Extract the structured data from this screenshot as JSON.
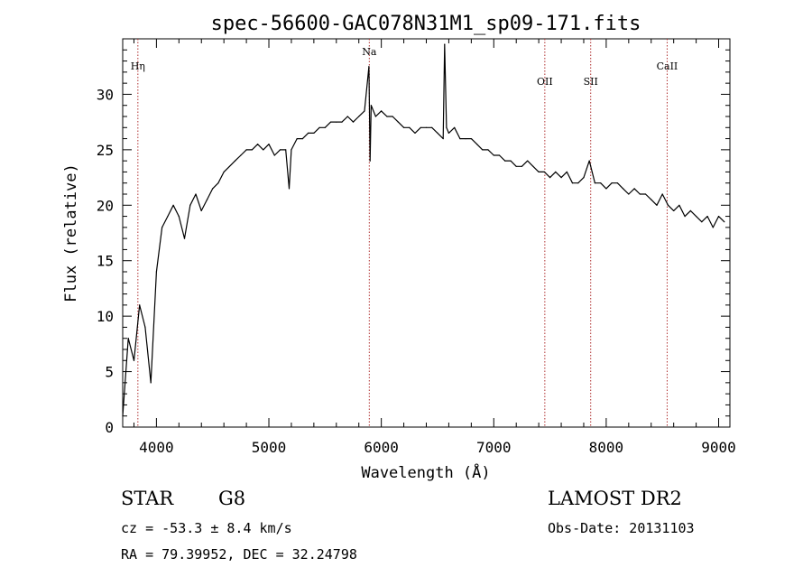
{
  "chart_data": {
    "type": "line",
    "title": "spec-56600-GAC078N31M1_sp09-171.fits",
    "xlabel": "Wavelength (Å)",
    "ylabel": "Flux (relative)",
    "xlim": [
      3700,
      9100
    ],
    "ylim": [
      0,
      35
    ],
    "xticks": [
      4000,
      5000,
      6000,
      7000,
      8000,
      9000
    ],
    "yticks": [
      0,
      5,
      10,
      15,
      20,
      25,
      30
    ],
    "grid": false,
    "series": [
      {
        "line_color": "#000000",
        "x": [
          3700,
          3750,
          3800,
          3850,
          3900,
          3950,
          4000,
          4050,
          4100,
          4150,
          4200,
          4250,
          4300,
          4350,
          4400,
          4450,
          4500,
          4550,
          4600,
          4650,
          4700,
          4750,
          4800,
          4850,
          4900,
          4950,
          5000,
          5050,
          5100,
          5150,
          5180,
          5200,
          5250,
          5300,
          5350,
          5400,
          5450,
          5500,
          5550,
          5600,
          5650,
          5700,
          5750,
          5800,
          5850,
          5890,
          5900,
          5910,
          5950,
          6000,
          6050,
          6100,
          6150,
          6200,
          6250,
          6300,
          6350,
          6400,
          6450,
          6500,
          6550,
          6563,
          6580,
          6600,
          6650,
          6700,
          6750,
          6800,
          6850,
          6900,
          6950,
          7000,
          7050,
          7100,
          7150,
          7200,
          7250,
          7300,
          7350,
          7400,
          7450,
          7500,
          7550,
          7600,
          7650,
          7700,
          7750,
          7800,
          7850,
          7900,
          7950,
          8000,
          8050,
          8100,
          8150,
          8200,
          8250,
          8300,
          8350,
          8400,
          8450,
          8500,
          8550,
          8600,
          8650,
          8700,
          8750,
          8800,
          8850,
          8900,
          8950,
          9000,
          9050
        ],
        "y": [
          1,
          8,
          6,
          11,
          9,
          4,
          14,
          18,
          19,
          20,
          19,
          17,
          20,
          21,
          19.5,
          20.5,
          21.5,
          22,
          23,
          23.5,
          24,
          24.5,
          25,
          25,
          25.5,
          25,
          25.5,
          24.5,
          25,
          25,
          21.5,
          25,
          26,
          26,
          26.5,
          26.5,
          27,
          27,
          27.5,
          27.5,
          27.5,
          28,
          27.5,
          28,
          28.5,
          32.5,
          24,
          29,
          28,
          28.5,
          28,
          28,
          27.5,
          27,
          27,
          26.5,
          27,
          27,
          27,
          26.5,
          26,
          34.5,
          27,
          26.5,
          27,
          26,
          26,
          26,
          25.5,
          25,
          25,
          24.5,
          24.5,
          24,
          24,
          23.5,
          23.5,
          24,
          23.5,
          23,
          23,
          22.5,
          23,
          22.5,
          23,
          22,
          22,
          22.5,
          24,
          22,
          22,
          21.5,
          22,
          22,
          21.5,
          21,
          21.5,
          21,
          21,
          20.5,
          20,
          21,
          20,
          19.5,
          20,
          19,
          19.5,
          19,
          18.5,
          19,
          18,
          19,
          18.5
        ]
      }
    ],
    "lines": [
      {
        "label": "Hη",
        "x": 3835
      },
      {
        "label": "Na",
        "x": 5893
      },
      {
        "label": "OII",
        "x": 7454
      },
      {
        "label": "SII",
        "x": 7862
      },
      {
        "label": "CaII",
        "x": 8542
      }
    ],
    "info": {
      "class": "STAR",
      "subclass": "G8",
      "velocity": "cz = -53.3 ± 8.4 km/s",
      "coords": "RA =  79.39952, DEC =  32.24798",
      "survey": "LAMOST DR2",
      "obs_date": "Obs-Date: 20131103"
    }
  }
}
